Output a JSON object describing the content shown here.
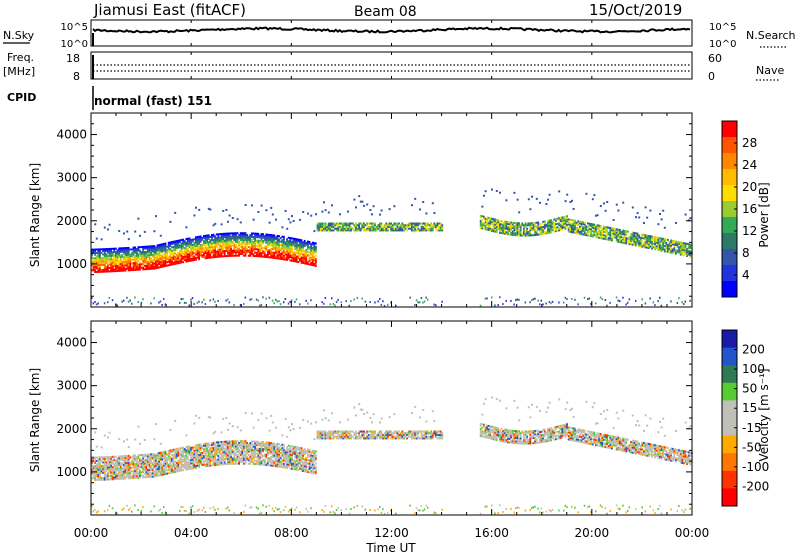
{
  "header": {
    "station": "Jiamusi East (fitACF)",
    "beam": "Beam 08",
    "date": "15/Oct/2019"
  },
  "sidebar": {
    "nsky": "N.Sky",
    "nsearch": "N.Search",
    "freq": "Freq.",
    "freq_unit": "[MHz]",
    "nave": "Nave",
    "cpid": "CPID",
    "cpid_value": "normal (fast) 151"
  },
  "chart_data": [
    {
      "type": "line",
      "name": "noise",
      "ylim_labels": [
        "10^0",
        "10^5"
      ],
      "left_ticks": [
        "10^5",
        "10^0"
      ],
      "right_ticks": [
        "10^5",
        "10^0"
      ],
      "series": [
        {
          "name": "N.Sky",
          "style": "solid"
        },
        {
          "name": "N.Search",
          "style": "dotted"
        }
      ]
    },
    {
      "type": "line",
      "name": "frequency",
      "left_ticks": [
        "18",
        "8"
      ],
      "right_ticks": [
        "60",
        "0"
      ],
      "left_range": [
        8,
        18
      ],
      "right_range": [
        0,
        60
      ]
    },
    {
      "type": "heatmap",
      "name": "power",
      "ylabel": "Slant Range [km]",
      "yticks": [
        1000,
        2000,
        3000,
        4000
      ],
      "ylim": [
        0,
        4500
      ],
      "colorbar_label": "Power [dB]",
      "colorbar_ticks": [
        "28",
        "24",
        "20",
        "16",
        "12",
        "8",
        "4"
      ],
      "colorbar_colors": [
        "#ff0000",
        "#ff5500",
        "#ff8800",
        "#ffbb00",
        "#ffdd00",
        "#99cc33",
        "#33aa55",
        "#2b7a66",
        "#3355aa",
        "#2233dd",
        "#0000ff"
      ]
    },
    {
      "type": "heatmap",
      "name": "velocity",
      "ylabel": "Slant Range [km]",
      "yticks": [
        1000,
        2000,
        3000,
        4000
      ],
      "ylim": [
        0,
        4500
      ],
      "colorbar_label": "Velocity [m s⁻¹]",
      "colorbar_ticks": [
        "200",
        "100",
        "50",
        "15",
        "-15",
        "-50",
        "-100",
        "-200"
      ],
      "colorbar_colors": [
        "#1a1aa8",
        "#2255cc",
        "#2e7a55",
        "#55cc33",
        "#c0c0b8",
        "#c0c0b8",
        "#ffaa00",
        "#ff7700",
        "#ff3300",
        "#ff0000"
      ]
    }
  ],
  "xaxis": {
    "ticks": [
      "00:00",
      "04:00",
      "08:00",
      "12:00",
      "16:00",
      "20:00",
      "00:00"
    ],
    "label": "Time UT"
  }
}
